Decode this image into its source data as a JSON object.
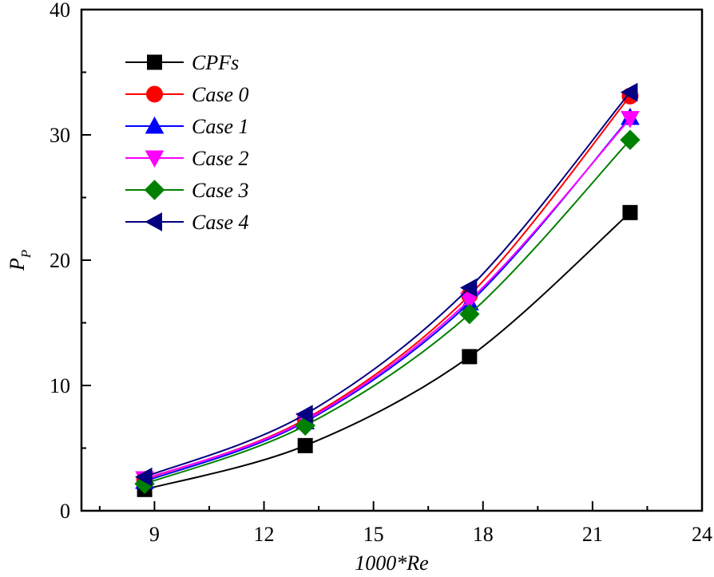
{
  "chart_data": {
    "type": "line",
    "title": "",
    "xlabel": "1000*Re",
    "ylabel": "P_P",
    "ylabel_main": "P",
    "ylabel_sub": "P",
    "xlim": [
      7,
      24
    ],
    "ylim": [
      0,
      40
    ],
    "xticks": [
      9,
      12,
      15,
      18,
      21,
      24
    ],
    "xticks_minor": [
      7.5,
      10.5,
      13.5,
      16.5,
      19.5,
      22.5
    ],
    "yticks": [
      0,
      10,
      20,
      30,
      40
    ],
    "yticks_minor": [
      5,
      15,
      25,
      35
    ],
    "grid": false,
    "legend_position": "top-left",
    "smooth": true,
    "x": [
      8.73,
      13.13,
      17.63,
      22.03
    ],
    "series": [
      {
        "name": "CPFs",
        "color": "#000000",
        "marker": "square",
        "values": [
          1.7,
          5.2,
          12.3,
          23.8
        ]
      },
      {
        "name": "Case 0",
        "color": "#ff0000",
        "marker": "circle",
        "values": [
          2.5,
          7.3,
          17.2,
          33.1
        ]
      },
      {
        "name": "Case 1",
        "color": "#0000ff",
        "marker": "triangle-up",
        "values": [
          2.35,
          7.1,
          16.6,
          31.4
        ]
      },
      {
        "name": "Case 2",
        "color": "#ff00ff",
        "marker": "triangle-down",
        "values": [
          2.55,
          7.2,
          16.8,
          31.3
        ]
      },
      {
        "name": "Case 3",
        "color": "#008000",
        "marker": "diamond",
        "values": [
          2.15,
          6.8,
          15.7,
          29.6
        ]
      },
      {
        "name": "Case 4",
        "color": "#000080",
        "marker": "triangle-left",
        "values": [
          2.7,
          7.7,
          17.8,
          33.4
        ]
      }
    ]
  }
}
